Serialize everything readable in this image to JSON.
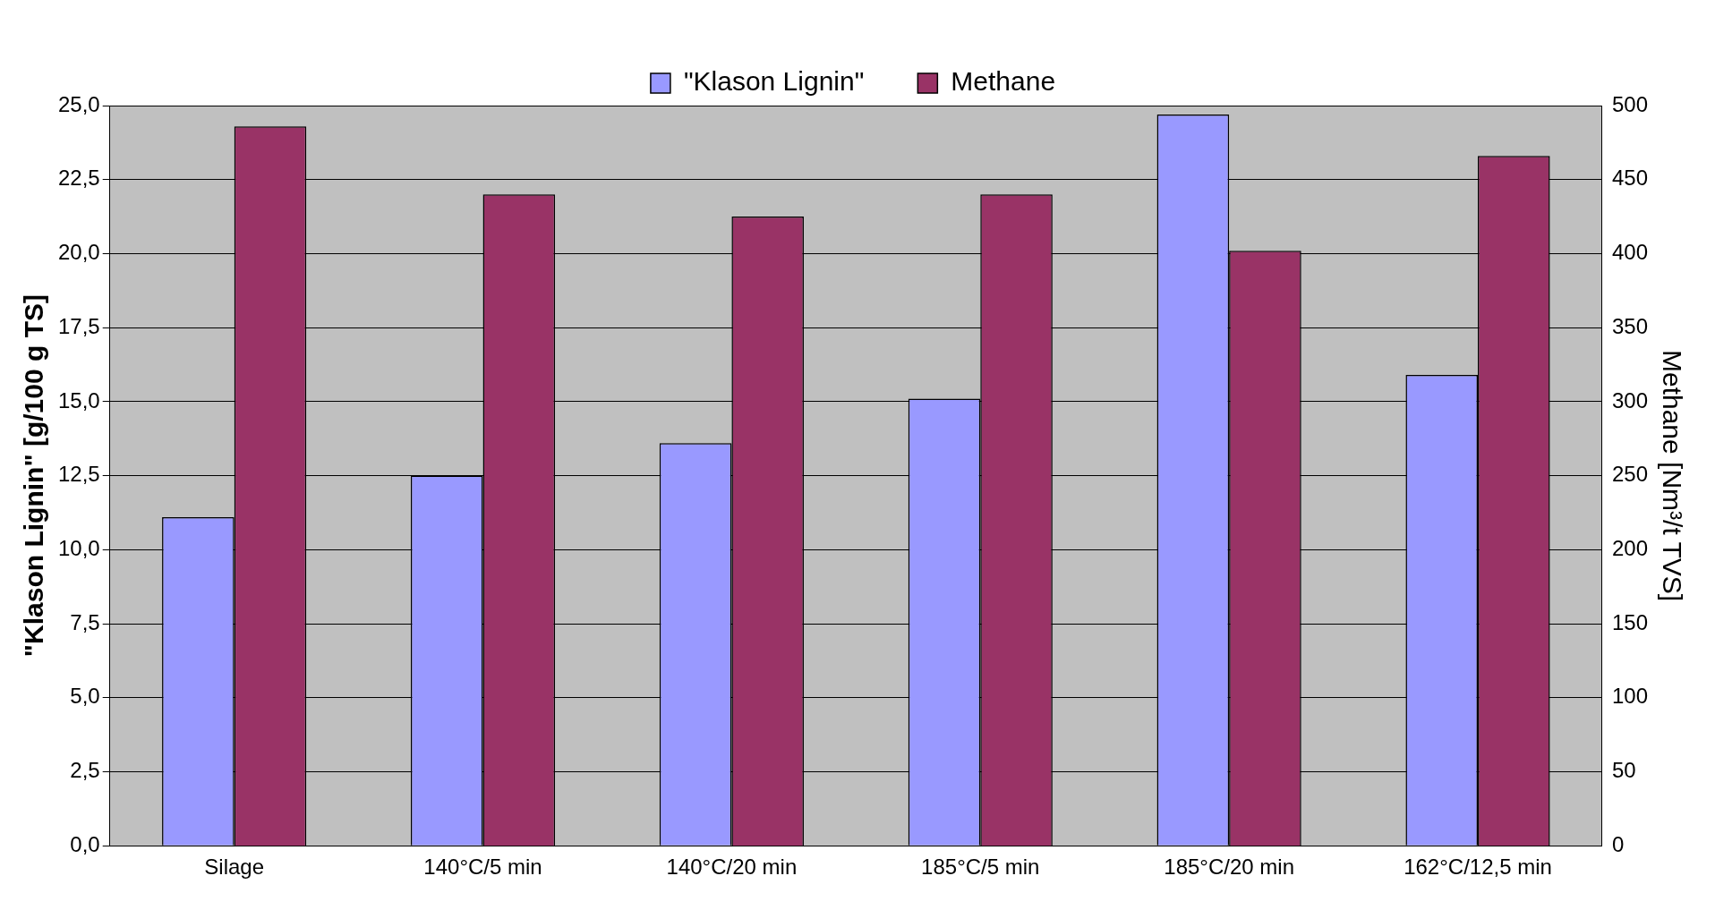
{
  "chart_data": {
    "type": "bar",
    "categories": [
      "Silage",
      "140°C/5 min",
      "140°C/20 min",
      "185°C/5 min",
      "185°C/20 min",
      "162°C/12,5 min"
    ],
    "series": [
      {
        "name": "\"Klason Lignin\"",
        "color": "#9999ff",
        "values": [
          11.1,
          12.5,
          13.6,
          15.1,
          24.7,
          15.9
        ]
      },
      {
        "name": "Methane",
        "color": "#993366",
        "axis": "y2",
        "values": [
          486,
          440,
          425,
          440,
          402,
          466
        ]
      }
    ],
    "ylabel": "\"Klason Lignin\" [g/100 g TS]",
    "y2label": "Methane [Nm³/t TVS]",
    "ylim": [
      0,
      25
    ],
    "yticks": [
      {
        "value": 0,
        "label": "0,0"
      },
      {
        "value": 2.5,
        "label": "2,5"
      },
      {
        "value": 5,
        "label": "5,0"
      },
      {
        "value": 7.5,
        "label": "7,5"
      },
      {
        "value": 10,
        "label": "10,0"
      },
      {
        "value": 12.5,
        "label": "12,5"
      },
      {
        "value": 15,
        "label": "15,0"
      },
      {
        "value": 17.5,
        "label": "17,5"
      },
      {
        "value": 20,
        "label": "20,0"
      },
      {
        "value": 22.5,
        "label": "22,5"
      },
      {
        "value": 25,
        "label": "25,0"
      }
    ],
    "y2lim": [
      0,
      500
    ],
    "y2ticks": [
      0,
      50,
      100,
      150,
      200,
      250,
      300,
      350,
      400,
      450,
      500
    ],
    "grid": "y",
    "legend": "top"
  }
}
